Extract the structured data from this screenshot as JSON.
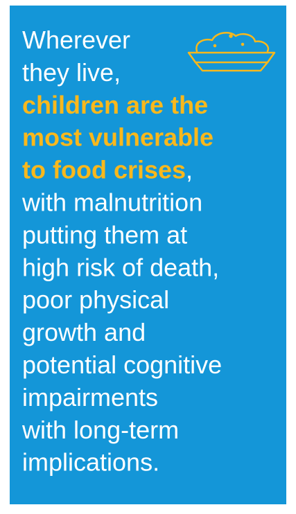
{
  "panel": {
    "lines": [
      [
        {
          "text": "Wherever",
          "highlight": false
        }
      ],
      [
        {
          "text": "they live,",
          "highlight": false
        }
      ],
      [
        {
          "text": "children are the",
          "highlight": true
        }
      ],
      [
        {
          "text": "most vulnerable",
          "highlight": true
        }
      ],
      [
        {
          "text": "to food crises",
          "highlight": true
        },
        {
          "text": ",",
          "highlight": false
        }
      ],
      [
        {
          "text": "with malnutrition",
          "highlight": false
        }
      ],
      [
        {
          "text": "putting them at",
          "highlight": false
        }
      ],
      [
        {
          "text": "high risk of death,",
          "highlight": false
        }
      ],
      [
        {
          "text": "poor physical",
          "highlight": false
        }
      ],
      [
        {
          "text": "growth and",
          "highlight": false
        }
      ],
      [
        {
          "text": "potential cognitive",
          "highlight": false
        }
      ],
      [
        {
          "text": "impairments",
          "highlight": false
        }
      ],
      [
        {
          "text": "with long-term",
          "highlight": false
        }
      ],
      [
        {
          "text": "implications.",
          "highlight": false
        }
      ]
    ]
  }
}
